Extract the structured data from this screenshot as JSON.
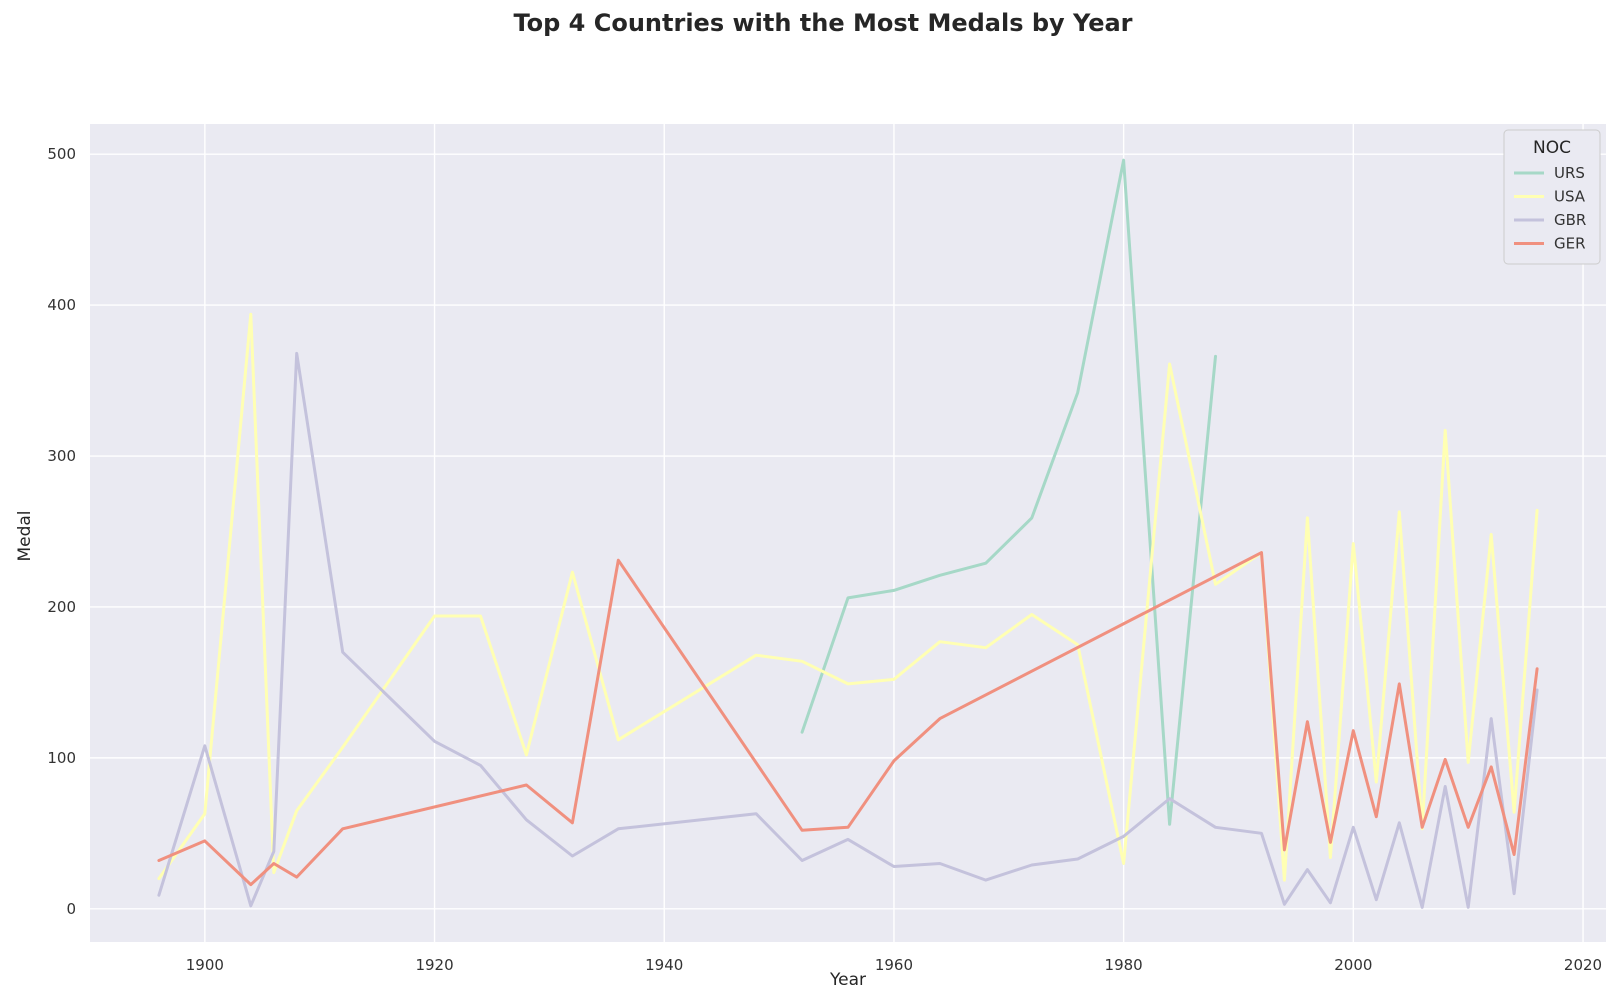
{
  "chart_data": {
    "type": "line",
    "title": "Top 4 Countries with the Most Medals by Year",
    "xlabel": "Year",
    "ylabel": "Medal",
    "xlim": [
      1890,
      2022
    ],
    "ylim": [
      -22,
      520
    ],
    "xticks": [
      1900,
      1920,
      1940,
      1960,
      1980,
      2000,
      2020
    ],
    "yticks": [
      0,
      100,
      200,
      300,
      400,
      500
    ],
    "grid": true,
    "legend": {
      "title": "NOC",
      "placement": "top-right"
    },
    "series": [
      {
        "name": "URS",
        "color": "#a6d8c7",
        "x": [
          1952,
          1956,
          1960,
          1964,
          1968,
          1972,
          1976,
          1980,
          1984,
          1988
        ],
        "y": [
          117,
          206,
          211,
          221,
          229,
          259,
          342,
          496,
          56,
          366
        ]
      },
      {
        "name": "USA",
        "color": "#ffffb3",
        "x": [
          1896,
          1900,
          1904,
          1906,
          1908,
          1912,
          1920,
          1924,
          1928,
          1932,
          1936,
          1948,
          1952,
          1956,
          1960,
          1964,
          1968,
          1972,
          1976,
          1980,
          1984,
          1988,
          1992,
          1994,
          1996,
          1998,
          2000,
          2002,
          2004,
          2006,
          2008,
          2010,
          2012,
          2014,
          2016
        ],
        "y": [
          20,
          63,
          394,
          24,
          65,
          107,
          194,
          194,
          102,
          223,
          112,
          168,
          164,
          149,
          152,
          177,
          173,
          195,
          175,
          30,
          361,
          215,
          236,
          19,
          259,
          34,
          242,
          84,
          263,
          53,
          317,
          97,
          248,
          64,
          264
        ]
      },
      {
        "name": "GBR",
        "color": "#c4c2dc",
        "x": [
          1896,
          1900,
          1904,
          1906,
          1908,
          1912,
          1920,
          1924,
          1928,
          1932,
          1936,
          1948,
          1952,
          1956,
          1960,
          1964,
          1968,
          1972,
          1976,
          1980,
          1984,
          1988,
          1992,
          1994,
          1996,
          1998,
          2000,
          2002,
          2004,
          2006,
          2008,
          2010,
          2012,
          2014,
          2016
        ],
        "y": [
          9,
          108,
          2,
          38,
          368,
          170,
          111,
          95,
          59,
          35,
          53,
          63,
          32,
          46,
          28,
          30,
          19,
          29,
          33,
          48,
          73,
          54,
          50,
          3,
          26,
          4,
          54,
          6,
          57,
          1,
          81,
          1,
          126,
          10,
          145
        ]
      },
      {
        "name": "GER",
        "color": "#f0907f",
        "x": [
          1896,
          1900,
          1904,
          1906,
          1908,
          1912,
          1928,
          1932,
          1936,
          1952,
          1956,
          1960,
          1964,
          1992,
          1994,
          1996,
          1998,
          2000,
          2002,
          2004,
          2006,
          2008,
          2010,
          2012,
          2014,
          2016
        ],
        "y": [
          32,
          45,
          16,
          30,
          21,
          53,
          82,
          57,
          231,
          52,
          54,
          98,
          126,
          236,
          39,
          124,
          44,
          118,
          61,
          149,
          54,
          99,
          54,
          94,
          36,
          159
        ]
      }
    ]
  }
}
